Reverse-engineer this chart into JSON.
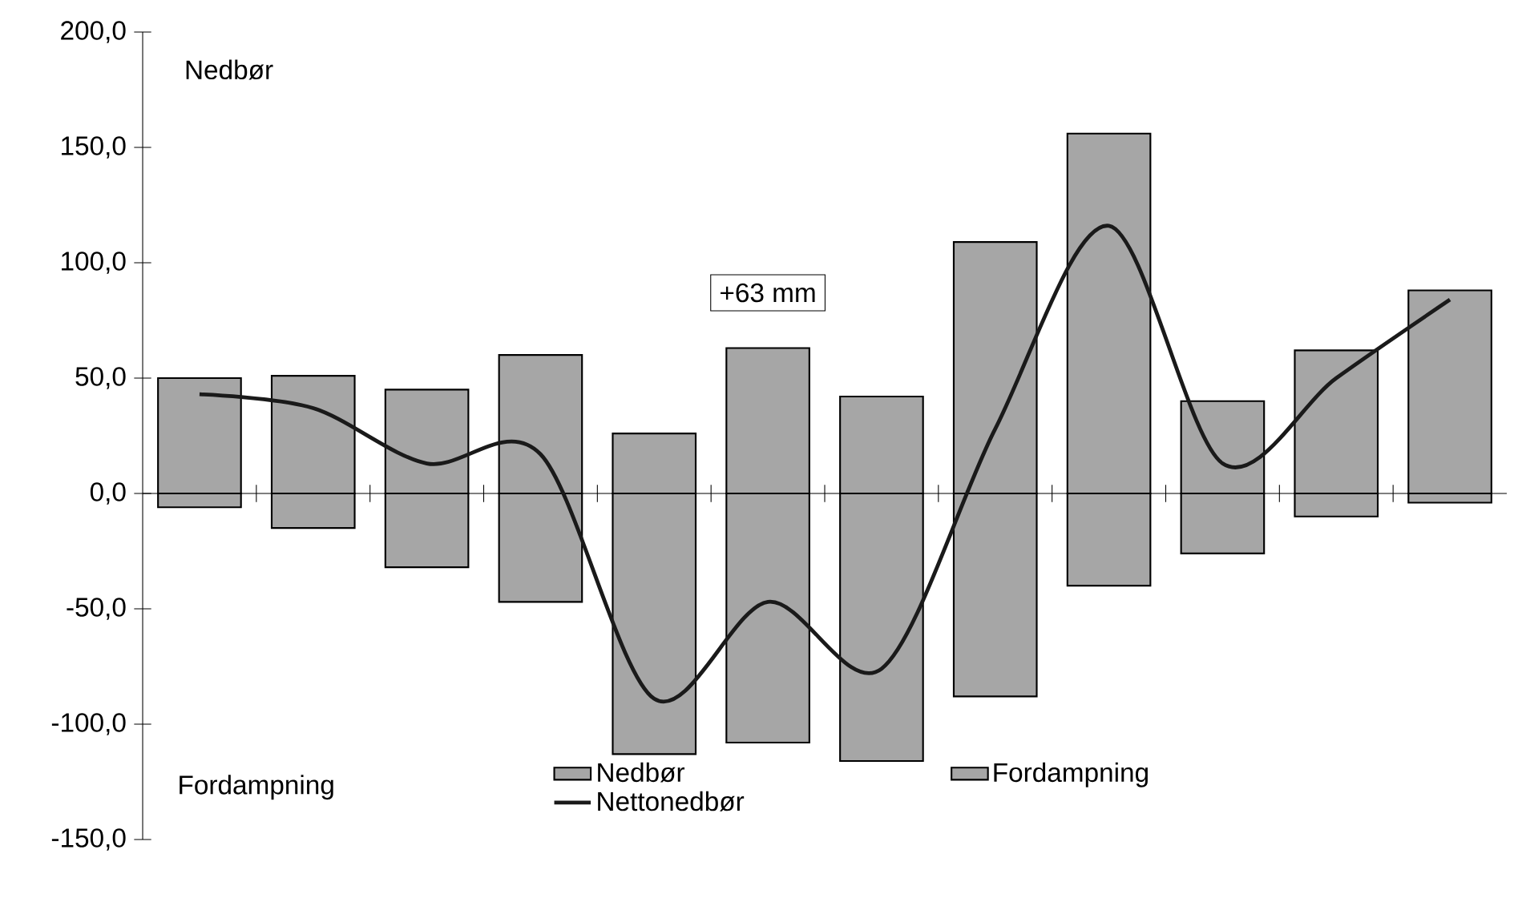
{
  "chart_data": {
    "type": "bar",
    "stacked": true,
    "categories": [
      null,
      null,
      null,
      null,
      null,
      null,
      null,
      null,
      null,
      null,
      null,
      null
    ],
    "series": [
      {
        "name": "Nedbør",
        "color": "#a6a6a6",
        "values": [
          50,
          51,
          45,
          60,
          26,
          63,
          42,
          109,
          156,
          40,
          62,
          88
        ]
      },
      {
        "name": "Fordampning",
        "color": "#a6a6a6",
        "values": [
          -6,
          -15,
          -32,
          -47,
          -113,
          -108,
          -116,
          -88,
          -40,
          -26,
          -10,
          -4
        ]
      },
      {
        "name": "Nettonedbør",
        "type": "line",
        "color": "#1a1a1a",
        "values": [
          43,
          37,
          13,
          17,
          -89,
          -47,
          -76,
          28,
          116,
          13,
          50,
          84
        ]
      }
    ],
    "ylim": [
      -150,
      200
    ],
    "yticks": [
      {
        "value": -150,
        "label": "-150,0"
      },
      {
        "value": -100,
        "label": "-100,0"
      },
      {
        "value": -50,
        "label": "-50,0"
      },
      {
        "value": 0,
        "label": "0,0"
      },
      {
        "value": 50,
        "label": "50,0"
      },
      {
        "value": 100,
        "label": "100,0"
      },
      {
        "value": 150,
        "label": "150,0"
      },
      {
        "value": 200,
        "label": "200,0"
      }
    ],
    "tick_labels": "y",
    "legend": "bottom",
    "annotations": [
      "Nedbør",
      "Fordampning",
      "+63 mm"
    ]
  }
}
